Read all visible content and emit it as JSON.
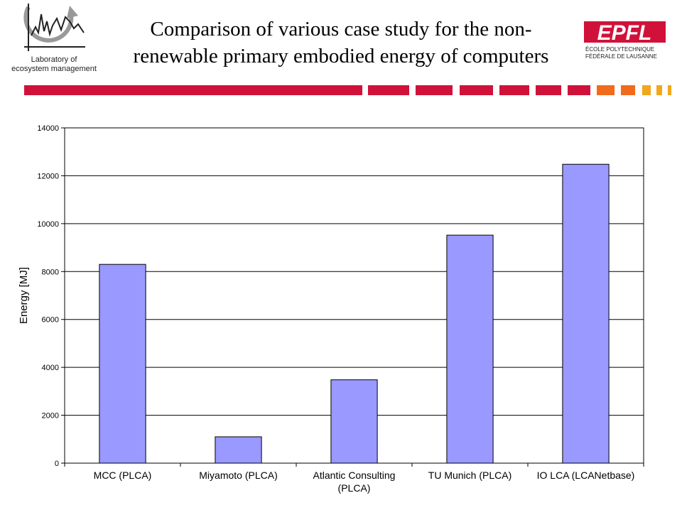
{
  "header": {
    "title_line1": "Comparison of various case study for the non-",
    "title_line2": "renewable primary embodied energy of computers",
    "lab_line1": "Laboratory of",
    "lab_line2": "ecosystem management",
    "epfl_logo_text": "EPFL",
    "epfl_sub1": "ÉCOLE POLYTECHNIQUE",
    "epfl_sub2": "FÉDÉRALE DE LAUSANNE"
  },
  "colors": {
    "accent_red": "#d0123a",
    "accent_orange": "#f26a1b",
    "accent_yellow": "#f2a81b",
    "bar_fill": "#9999ff"
  },
  "chart_data": {
    "type": "bar",
    "title": "",
    "xlabel": "",
    "ylabel": "Energy [MJ]",
    "categories": [
      [
        "MCC (PLCA)"
      ],
      [
        "Miyamoto (PLCA)"
      ],
      [
        "Atlantic Consulting",
        "(PLCA)"
      ],
      [
        "TU Munich (PLCA)"
      ],
      [
        "IO LCA (LCANetbase)"
      ]
    ],
    "values": [
      8300,
      1100,
      3480,
      9520,
      12480
    ],
    "ylim": [
      0,
      14000
    ],
    "yticks": [
      0,
      2000,
      4000,
      6000,
      8000,
      10000,
      12000,
      14000
    ],
    "grid": true,
    "legend": "none"
  }
}
